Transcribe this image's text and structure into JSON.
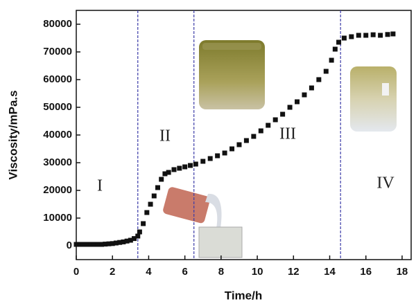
{
  "chart_data": {
    "type": "scatter",
    "x_label": "Time/h",
    "y_label": "Viscosity/mPa.s",
    "xlim": [
      0,
      18.5
    ],
    "ylim": [
      -5000,
      85000
    ],
    "xticks": [
      0,
      2,
      4,
      6,
      8,
      10,
      12,
      14,
      16,
      18
    ],
    "yticks": [
      0,
      10000,
      20000,
      30000,
      40000,
      50000,
      60000,
      70000,
      80000
    ],
    "color": "#111111",
    "x": [
      0,
      0.2,
      0.4,
      0.6,
      0.8,
      1.0,
      1.2,
      1.4,
      1.6,
      1.8,
      2.0,
      2.2,
      2.4,
      2.6,
      2.8,
      3.0,
      3.2,
      3.4,
      3.5,
      3.7,
      3.9,
      4.1,
      4.3,
      4.5,
      4.7,
      4.9,
      5.1,
      5.4,
      5.7,
      6.0,
      6.3,
      6.6,
      7.0,
      7.4,
      7.8,
      8.2,
      8.6,
      9.0,
      9.4,
      9.8,
      10.2,
      10.6,
      11.0,
      11.4,
      11.8,
      12.2,
      12.6,
      13.0,
      13.4,
      13.8,
      14.1,
      14.3,
      14.5,
      14.8,
      15.2,
      15.6,
      16.0,
      16.4,
      16.8,
      17.2,
      17.5
    ],
    "values": [
      500,
      500,
      500,
      500,
      500,
      500,
      500,
      500,
      600,
      700,
      800,
      1000,
      1200,
      1400,
      1700,
      2000,
      2600,
      3500,
      5000,
      8000,
      12000,
      15000,
      18000,
      21000,
      24000,
      26000,
      26500,
      27500,
      28000,
      28500,
      29000,
      29500,
      30500,
      31500,
      32500,
      33500,
      35000,
      36500,
      38000,
      39500,
      41500,
      43500,
      45500,
      47500,
      50000,
      52000,
      54500,
      57000,
      60000,
      63000,
      67000,
      71000,
      73500,
      75000,
      75500,
      76000,
      76000,
      76200,
      76000,
      76300,
      76500
    ],
    "vlines": [
      3.4,
      6.5,
      14.6
    ],
    "vline_color": "#3a3aa8",
    "regions": [
      "I",
      "II",
      "III",
      "IV"
    ]
  }
}
